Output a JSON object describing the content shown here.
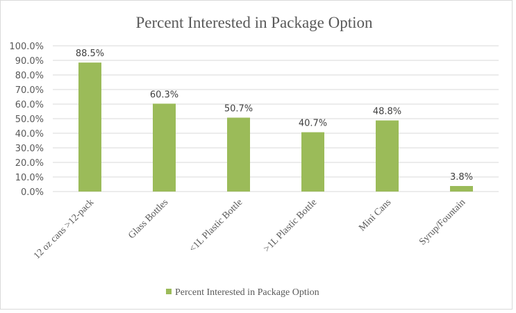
{
  "chart_data": {
    "type": "bar",
    "title": "Percent Interested in Package Option",
    "categories": [
      "12 oz cans >12-pack",
      "Glass Bottles",
      "<1L Plastic Bottle",
      ">1L Plastic Bottle",
      "Mini Cans",
      "Syrup/Fountain"
    ],
    "series": [
      {
        "name": "Percent Interested in Package Option",
        "values": [
          88.5,
          60.3,
          50.7,
          40.7,
          48.8,
          3.8
        ],
        "color": "#9bbb59"
      }
    ],
    "data_labels": [
      "88.5%",
      "60.3%",
      "50.7%",
      "40.7%",
      "48.8%",
      "3.8%"
    ],
    "ylim": [
      0,
      100
    ],
    "yticks": [
      "0.0%",
      "10.0%",
      "20.0%",
      "30.0%",
      "40.0%",
      "50.0%",
      "60.0%",
      "70.0%",
      "80.0%",
      "90.0%",
      "100.0%"
    ],
    "xlabel": "",
    "ylabel": "",
    "grid": true,
    "legend": "bottom"
  }
}
